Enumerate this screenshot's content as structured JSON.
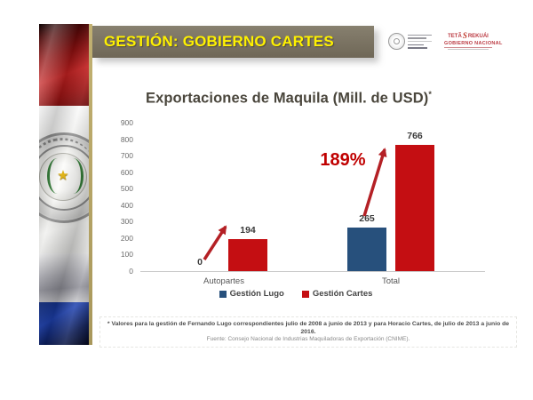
{
  "slide": {
    "header": {
      "title": "GESTIÓN: GOBIERNO CARTES"
    },
    "logos": {
      "right_logo": {
        "word1": "TETÃ",
        "word2": "REKUÁI",
        "line2": "GOBIERNO NACIONAL"
      }
    },
    "footnote": {
      "line1": "* Valores para la gestión de Fernando Lugo correspondientes julio de 2008 a junio de 2013 y para Horacio Cartes, de julio de 2013 a junio de 2016.",
      "line2": "Fuente: Consejo Nacional de Industrias Maquiladoras de Exportación (CNIME)."
    }
  },
  "chart_data": {
    "type": "bar",
    "title": "Exportaciones de Maquila (Mill. de USD)",
    "title_superscript": "*",
    "categories": [
      "Autopartes",
      "Total"
    ],
    "series": [
      {
        "name": "Gestión Lugo",
        "color": "#27507c",
        "values": [
          0,
          265
        ]
      },
      {
        "name": "Gestión Cartes",
        "color": "#c40e12",
        "values": [
          194,
          766
        ]
      }
    ],
    "ylim": [
      0,
      900
    ],
    "ytick_interval": 100,
    "grid": false,
    "legend_position": "bottom",
    "annotation": {
      "growth_label": "189%"
    }
  },
  "colors": {
    "header_bg": "#7c7466",
    "header_text": "#fff200",
    "accent_line": "#b3a36b",
    "arrow": "#b42025",
    "annotation_red": "#c00000"
  }
}
